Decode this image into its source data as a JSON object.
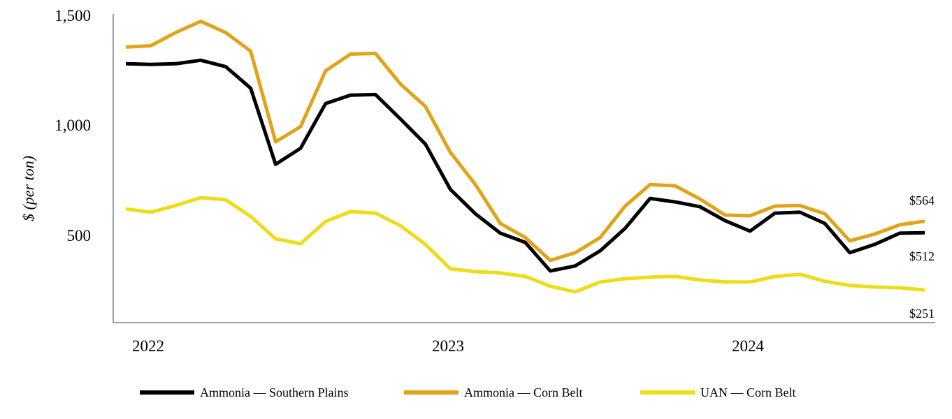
{
  "chart_data": {
    "type": "line",
    "ylabel": "$ (per ton)",
    "xlabel": "",
    "ylim": [
      100,
      1500
    ],
    "yticks": [
      "500",
      "1,000",
      "1,500"
    ],
    "ytick_values": [
      500,
      1000,
      1500
    ],
    "xticks": [
      "2022",
      "2023",
      "2024"
    ],
    "x_start": "2022-01",
    "x_frequency": "monthly",
    "grid": false,
    "legend_position": "bottom",
    "series": [
      {
        "name": "Ammonia — Southern Plains",
        "color": "#000000",
        "values": [
          1280,
          1277,
          1280,
          1296,
          1267,
          1169,
          823,
          896,
          1099,
          1137,
          1140,
          1029,
          915,
          709,
          598,
          510,
          468,
          338,
          361,
          430,
          532,
          668,
          652,
          630,
          567,
          519,
          601,
          605,
          554,
          421,
          459,
          510,
          512
        ],
        "end_label": "$512"
      },
      {
        "name": "Ammonia — Corn Belt",
        "color": "#E0A31A",
        "values": [
          1356,
          1362,
          1422,
          1473,
          1422,
          1337,
          925,
          994,
          1248,
          1324,
          1327,
          1188,
          1086,
          877,
          731,
          554,
          490,
          386,
          421,
          490,
          633,
          731,
          725,
          665,
          592,
          589,
          633,
          636,
          598,
          475,
          506,
          548,
          564
        ],
        "end_label": "$564"
      },
      {
        "name": "UAN — Corn Belt",
        "color": "#EDDC17",
        "values": [
          620,
          605,
          636,
          671,
          662,
          586,
          484,
          462,
          563,
          608,
          601,
          544,
          459,
          348,
          335,
          329,
          313,
          269,
          243,
          288,
          303,
          310,
          313,
          297,
          288,
          288,
          313,
          323,
          291,
          272,
          265,
          262,
          251
        ],
        "end_label": "$251"
      }
    ]
  }
}
